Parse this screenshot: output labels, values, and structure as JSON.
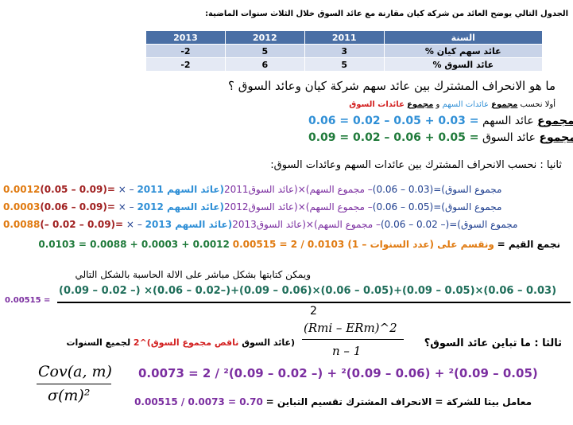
{
  "intro": "الجدول التالي يوضح العائد من شركة كيان مقارنة مع عائد السوق خلال الثلاث سنوات الماضية:",
  "table": {
    "header": [
      "السنة",
      "2011",
      "2012",
      "2013"
    ],
    "rows": [
      [
        "عائد سهم كيان %",
        "3",
        "5",
        "-2"
      ],
      [
        "عائد السوق %",
        "5",
        "6",
        "-2"
      ]
    ]
  },
  "question1": "ما هو الانحراف المشترك بين عائد سهم شركة كيان وعائد السوق ؟",
  "first_step": {
    "prefix": "أولا نحسب",
    "term1": "مجموع",
    "label1": "عائدات السهم",
    "conj": "و",
    "term2": "مجموع",
    "label2": "عائدات السوق"
  },
  "sums": {
    "stock": {
      "word": "مجموع",
      "label": "عائد السهم",
      "expr": "0.06 = 0.02 – 0.05 + 0.03 ="
    },
    "market": {
      "word": "مجموع",
      "label": "عائد السوق",
      "expr": "0.09 = 0.02 – 0.06 + 0.05 ="
    }
  },
  "second_step": "ثانيا : نحسب الانحراف المشترك بين عائدات السهم وعائدات السوق:",
  "cov_rows": [
    {
      "a": "(عائد السهم 2011",
      "b": "– مجموع السهم)×(عائد السوق2011",
      "c": "– مجموع السوق)=(0.03 – 0.06)",
      "d": "×",
      "e": "(0.05 – 0.09)=",
      "f": "0.0012"
    },
    {
      "a": "(عائد السهم 2012",
      "b": "– مجموع السهم)×(عائد السوق2012",
      "c": "– مجموع السوق)=(0.05 – 0.06)",
      "d": "×",
      "e": "(0.06 – 0.09)=",
      "f": "0.0003"
    },
    {
      "a": "(عائد السهم 2013",
      "b": "– مجموع السهم)×(عائد السوق2013",
      "c": "– مجموع السوق)=(– 0.02 – 0.06)",
      "d": "×",
      "e": "(– 0.02 – 0.09)=",
      "f": "0.0088"
    }
  ],
  "sum_line": {
    "label": "نجمع القيم =",
    "expr": "0.0012 + 0.0003 + 0.0088 = 0.0103",
    "tail": "ونقسم على (عدد السنوات – 1) 0.0103 / 2 = 0.00515"
  },
  "calc_note": "ويمكن كتابتها بشكل مباشر على الالة الحاسبة بالشكل التالي",
  "direct_formula": {
    "result": "0.00515 =",
    "numerator": "(0.09 – 0.02 –) ×(0.06 – 0.02–)+(0.09 – 0.06)×(0.06 – 0.05)+(0.09 – 0.05)×(0.06 – 0.03)",
    "denominator": "2"
  },
  "question3": {
    "label": "ثالثا : ما تباين عائد السوق؟",
    "frac_num": "(Rmi – ERm)^2",
    "frac_den": "n – 1",
    "desc_a": "(عائد السوق",
    "desc_b": "ناقص",
    "desc_c": "مجموع السوق)^2",
    "desc_d": "لجميع السنوات"
  },
  "variance": {
    "expr": "0.0073 = 2 / ²(0.09 – 0.02 –) + ²(0.09 – 0.06) + ²(0.09 – 0.05)"
  },
  "beta_formula": {
    "num": "Cov(a, m)",
    "den": "σ(m)²"
  },
  "beta_line": {
    "label": "معامل بيتا للشركة = الانحراف المشترك تقسيم التباين =",
    "expr": "0.00515 / 0.0073 = 0.70"
  }
}
